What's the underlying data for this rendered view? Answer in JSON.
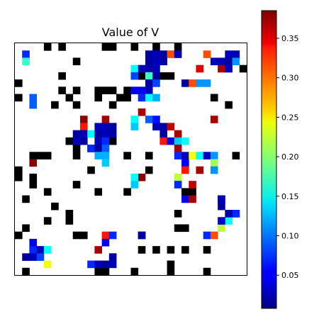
{
  "chart_data": {
    "type": "heatmap",
    "title": "Value of V",
    "grid_size": 32,
    "wall_color": "#000000",
    "colormap": "jet",
    "colorbar": {
      "vmin": 0.008,
      "vmax": 0.385,
      "ticks": [
        0.05,
        0.1,
        0.15,
        0.2,
        0.25,
        0.3,
        0.35
      ],
      "tick_labels": [
        "0.05",
        "0.10",
        "0.15",
        "0.20",
        "0.25",
        "0.30",
        "0.35"
      ]
    },
    "walls": [
      [
        4,
        0
      ],
      [
        6,
        0
      ],
      [
        12,
        0
      ],
      [
        13,
        0
      ],
      [
        16,
        0
      ],
      [
        19,
        0
      ],
      [
        22,
        0
      ],
      [
        8,
        2
      ],
      [
        31,
        3
      ],
      [
        6,
        4
      ],
      [
        17,
        4
      ],
      [
        20,
        4
      ],
      [
        21,
        4
      ],
      [
        0,
        5
      ],
      [
        6,
        6
      ],
      [
        8,
        6
      ],
      [
        11,
        6
      ],
      [
        12,
        6
      ],
      [
        13,
        6
      ],
      [
        15,
        6
      ],
      [
        0,
        7
      ],
      [
        7,
        7
      ],
      [
        11,
        7
      ],
      [
        14,
        7
      ],
      [
        15,
        7
      ],
      [
        27,
        7
      ],
      [
        5,
        8
      ],
      [
        8,
        8
      ],
      [
        13,
        8
      ],
      [
        29,
        8
      ],
      [
        7,
        13
      ],
      [
        13,
        13
      ],
      [
        10,
        14
      ],
      [
        8,
        14
      ],
      [
        2,
        15
      ],
      [
        3,
        15
      ],
      [
        4,
        15
      ],
      [
        8,
        15
      ],
      [
        15,
        15
      ],
      [
        18,
        15
      ],
      [
        30,
        15
      ],
      [
        10,
        17
      ],
      [
        18,
        17
      ],
      [
        0,
        17
      ],
      [
        0,
        18
      ],
      [
        2,
        18
      ],
      [
        2,
        19
      ],
      [
        8,
        19
      ],
      [
        4,
        20
      ],
      [
        11,
        20
      ],
      [
        15,
        20
      ],
      [
        23,
        20
      ],
      [
        24,
        20
      ],
      [
        1,
        21
      ],
      [
        28,
        21
      ],
      [
        5,
        22
      ],
      [
        7,
        23
      ],
      [
        22,
        23
      ],
      [
        7,
        24
      ],
      [
        30,
        23
      ],
      [
        4,
        24
      ],
      [
        1,
        25
      ],
      [
        22,
        25
      ],
      [
        23,
        25
      ],
      [
        0,
        26
      ],
      [
        8,
        26
      ],
      [
        9,
        26
      ],
      [
        17,
        26
      ],
      [
        2,
        28
      ],
      [
        17,
        28
      ],
      [
        19,
        28
      ],
      [
        21,
        28
      ],
      [
        23,
        28
      ],
      [
        26,
        28
      ],
      [
        1,
        31
      ],
      [
        11,
        31
      ],
      [
        12,
        31
      ],
      [
        16,
        31
      ],
      [
        21,
        31
      ],
      [
        26,
        31
      ],
      [
        21,
        30
      ]
    ],
    "cells": [
      [
        1,
        1,
        0.07
      ],
      [
        1,
        2,
        0.17
      ],
      [
        19,
        1,
        0.03
      ],
      [
        20,
        1,
        0.02
      ],
      [
        18,
        1,
        0.02
      ],
      [
        21,
        1,
        0.31
      ],
      [
        22,
        1,
        0.03
      ],
      [
        26,
        1,
        0.31
      ],
      [
        29,
        1,
        0.03
      ],
      [
        30,
        1,
        0.03
      ],
      [
        18,
        2,
        0.02
      ],
      [
        19,
        2,
        0.03
      ],
      [
        20,
        2,
        0.02
      ],
      [
        27,
        2,
        0.03
      ],
      [
        28,
        2,
        0.03
      ],
      [
        29,
        2,
        0.02
      ],
      [
        30,
        2,
        0.11
      ],
      [
        16,
        3,
        0.15
      ],
      [
        17,
        3,
        0.03
      ],
      [
        18,
        3,
        0.02
      ],
      [
        19,
        3,
        0.03
      ],
      [
        25,
        3,
        0.35
      ],
      [
        28,
        3,
        0.37
      ],
      [
        29,
        3,
        0.03
      ],
      [
        16,
        4,
        0.08
      ],
      [
        18,
        4,
        0.17
      ],
      [
        19,
        4,
        0.02
      ],
      [
        18,
        5,
        0.02
      ],
      [
        19,
        5,
        0.08
      ],
      [
        23,
        5,
        0.02
      ],
      [
        24,
        5,
        0.31
      ],
      [
        25,
        5,
        0.11
      ],
      [
        26,
        5,
        0.11
      ],
      [
        17,
        6,
        0.05
      ],
      [
        18,
        6,
        0.03
      ],
      [
        2,
        7,
        0.09
      ],
      [
        16,
        6,
        0.05
      ],
      [
        17,
        7,
        0.07
      ],
      [
        18,
        7,
        0.15
      ],
      [
        19,
        7,
        0.12
      ],
      [
        2,
        8,
        0.09
      ],
      [
        17,
        9,
        0.37
      ],
      [
        27,
        10,
        0.37
      ],
      [
        9,
        10,
        0.38
      ],
      [
        12,
        10,
        0.37
      ],
      [
        16,
        10,
        0.15
      ],
      [
        18,
        10,
        0.09
      ],
      [
        19,
        10,
        0.06
      ],
      [
        9,
        11,
        0.33
      ],
      [
        11,
        11,
        0.03
      ],
      [
        12,
        11,
        0.03
      ],
      [
        13,
        11,
        0.02
      ],
      [
        16,
        11,
        0.13
      ],
      [
        19,
        11,
        0.03
      ],
      [
        20,
        11,
        0.02
      ],
      [
        21,
        11,
        0.36
      ],
      [
        8,
        12,
        0.02
      ],
      [
        9,
        12,
        0.03
      ],
      [
        10,
        12,
        0.15
      ],
      [
        11,
        12,
        0.02
      ],
      [
        12,
        12,
        0.03
      ],
      [
        13,
        12,
        0.02
      ],
      [
        20,
        12,
        0.02
      ],
      [
        22,
        12,
        0.37
      ],
      [
        8,
        13,
        0.03
      ],
      [
        9,
        13,
        0.02
      ],
      [
        11,
        13,
        0.03
      ],
      [
        12,
        13,
        0.07
      ],
      [
        20,
        13,
        0.33
      ],
      [
        21,
        13,
        0.04
      ],
      [
        22,
        13,
        0.13
      ],
      [
        23,
        13,
        0.15
      ],
      [
        10,
        14,
        0.07
      ],
      [
        11,
        14,
        0.02
      ],
      [
        12,
        14,
        0.09
      ],
      [
        22,
        14,
        0.37
      ],
      [
        11,
        15,
        0.12
      ],
      [
        12,
        15,
        0.12
      ],
      [
        22,
        15,
        0.07
      ],
      [
        23,
        15,
        0.03
      ],
      [
        24,
        15,
        0.24
      ],
      [
        25,
        15,
        0.15
      ],
      [
        26,
        15,
        0.03
      ],
      [
        27,
        15,
        0.11
      ],
      [
        2,
        16,
        0.38
      ],
      [
        12,
        16,
        0.13
      ],
      [
        23,
        16,
        0.05
      ],
      [
        27,
        16,
        0.21
      ],
      [
        23,
        17,
        0.33
      ],
      [
        25,
        17,
        0.37
      ],
      [
        27,
        17,
        0.11
      ],
      [
        17,
        18,
        0.38
      ],
      [
        22,
        18,
        0.22
      ],
      [
        16,
        18,
        0.15
      ],
      [
        16,
        19,
        0.13
      ],
      [
        22,
        19,
        0.07
      ],
      [
        24,
        19,
        0.36
      ],
      [
        23,
        21,
        0.05
      ],
      [
        24,
        21,
        0.37
      ],
      [
        28,
        21,
        0.03
      ],
      [
        28,
        22,
        0.02
      ],
      [
        30,
        23,
        0.07
      ],
      [
        29,
        24,
        0.15
      ],
      [
        28,
        25,
        0.22
      ],
      [
        29,
        23,
        0.02
      ],
      [
        28,
        24,
        0.04
      ],
      [
        12,
        26,
        0.33
      ],
      [
        13,
        26,
        0.07
      ],
      [
        17,
        26,
        0.02
      ],
      [
        26,
        26,
        0.07
      ],
      [
        27,
        26,
        0.31
      ],
      [
        12,
        27,
        0.05
      ],
      [
        2,
        28,
        0.07
      ],
      [
        3,
        28,
        0.03
      ],
      [
        4,
        28,
        0.15
      ],
      [
        11,
        28,
        0.37
      ],
      [
        2,
        29,
        0.03
      ],
      [
        3,
        29,
        0.08
      ],
      [
        1,
        29,
        0.02
      ],
      [
        4,
        30,
        0.24
      ],
      [
        10,
        30,
        0.07
      ],
      [
        11,
        30,
        0.03
      ],
      [
        12,
        30,
        0.02
      ],
      [
        13,
        30,
        0.03
      ],
      [
        13,
        29,
        0.02
      ],
      [
        2,
        27,
        0.05
      ]
    ]
  }
}
